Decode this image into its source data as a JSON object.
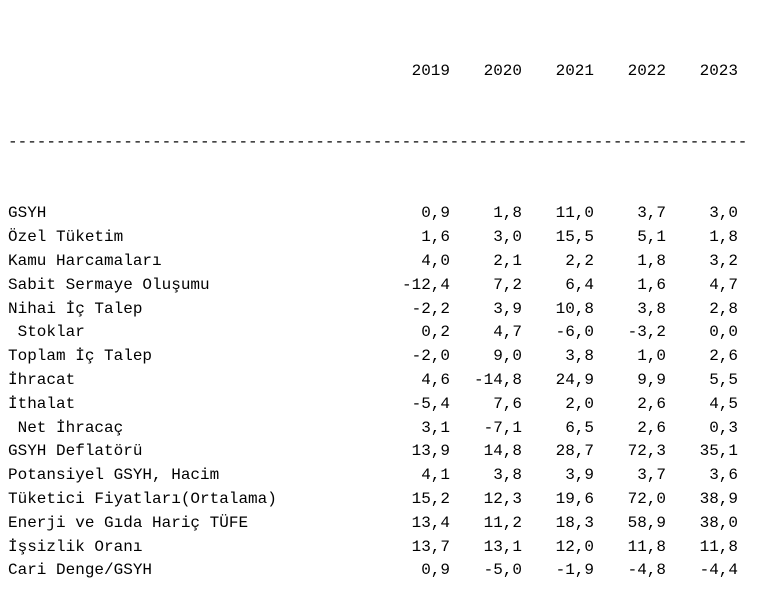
{
  "years": [
    "2019",
    "2020",
    "2021",
    "2022",
    "2023"
  ],
  "rule": "------------------------------------------------------------------------------",
  "rows": [
    {
      "label": "GSYH",
      "values": [
        "0,9",
        "1,8",
        "11,0",
        "3,7",
        "3,0"
      ]
    },
    {
      "label": "Özel Tüketim",
      "values": [
        "1,6",
        "3,0",
        "15,5",
        "5,1",
        "1,8"
      ]
    },
    {
      "label": "Kamu Harcamaları",
      "values": [
        "4,0",
        "2,1",
        "2,2",
        "1,8",
        "3,2"
      ]
    },
    {
      "label": "Sabit Sermaye Oluşumu",
      "values": [
        "-12,4",
        "7,2",
        "6,4",
        "1,6",
        "4,7"
      ]
    },
    {
      "label": "Nihai İç Talep",
      "values": [
        "-2,2",
        "3,9",
        "10,8",
        "3,8",
        "2,8"
      ]
    },
    {
      "label": " Stoklar",
      "values": [
        "0,2",
        "4,7",
        "-6,0",
        "-3,2",
        "0,0"
      ]
    },
    {
      "label": "Toplam İç Talep",
      "values": [
        "-2,0",
        "9,0",
        "3,8",
        "1,0",
        "2,6"
      ]
    },
    {
      "label": "İhracat",
      "values": [
        "4,6",
        "-14,8",
        "24,9",
        "9,9",
        "5,5"
      ]
    },
    {
      "label": "İthalat",
      "values": [
        "-5,4",
        "7,6",
        "2,0",
        "2,6",
        "4,5"
      ]
    },
    {
      "label": " Net İhracaç",
      "values": [
        "3,1",
        "-7,1",
        "6,5",
        "2,6",
        "0,3"
      ]
    },
    {
      "label": "GSYH Deflatörü",
      "values": [
        "13,9",
        "14,8",
        "28,7",
        "72,3",
        "35,1"
      ]
    },
    {
      "label": "Potansiyel GSYH, Hacim",
      "values": [
        "4,1",
        "3,8",
        "3,9",
        "3,7",
        "3,6"
      ]
    },
    {
      "label": "Tüketici Fiyatları(Ortalama)",
      "values": [
        "15,2",
        "12,3",
        "19,6",
        "72,0",
        "38,9"
      ]
    },
    {
      "label": "Enerji ve Gıda Hariç TÜFE",
      "values": [
        "13,4",
        "11,2",
        "18,3",
        "58,9",
        "38,0"
      ]
    },
    {
      "label": "İşsizlik Oranı",
      "values": [
        "13,7",
        "13,1",
        "12,0",
        "11,8",
        "11,8"
      ]
    },
    {
      "label": "Cari Denge/GSYH",
      "values": [
        "0,9",
        "-5,0",
        "-1,9",
        "-4,8",
        "-4,4"
      ]
    }
  ]
}
